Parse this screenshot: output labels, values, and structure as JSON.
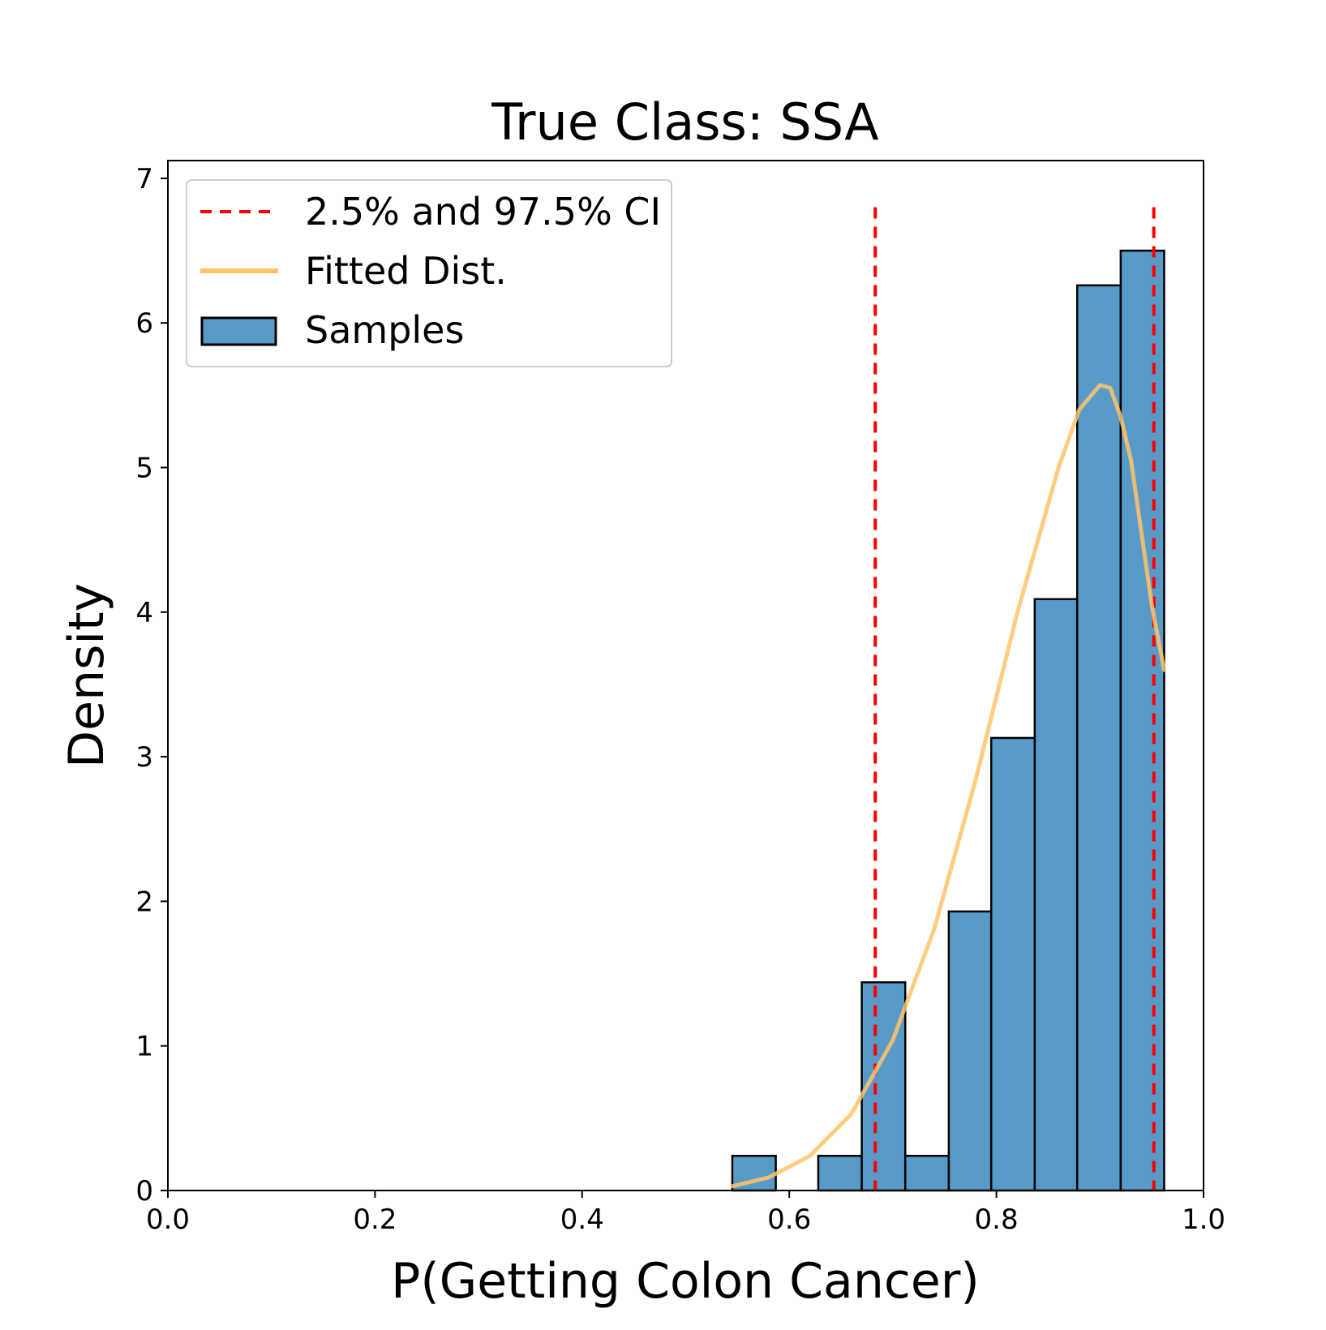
{
  "chart_data": {
    "type": "bar",
    "title": "True Class: SSA",
    "xlabel": "P(Getting Colon Cancer)",
    "ylabel": "Density",
    "xlim": [
      0.0,
      1.0
    ],
    "ylim": [
      0,
      7.2
    ],
    "x_ticks": [
      "0.0",
      "0.2",
      "0.4",
      "0.6",
      "0.8",
      "1.0"
    ],
    "x_tick_values": [
      0.0,
      0.2,
      0.4,
      0.6,
      0.8,
      1.0
    ],
    "y_ticks": [
      "0",
      "1",
      "2",
      "3",
      "4",
      "5",
      "6",
      "7"
    ],
    "y_tick_values": [
      0,
      1,
      2,
      3,
      4,
      5,
      6,
      7
    ],
    "grid": false,
    "legend_position": "top-left",
    "legend": [
      {
        "label": "2.5% and 97.5% CI",
        "kind": "dashed-line",
        "color": "#ff0000"
      },
      {
        "label": "Fitted Dist.",
        "kind": "line",
        "color": "#ffc469"
      },
      {
        "label": "Samples",
        "kind": "patch",
        "color": "#5799c7"
      }
    ],
    "histogram": {
      "name": "Samples",
      "color": "#5799c7",
      "edge_color": "#000000",
      "bin_edges": [
        0.545,
        0.587,
        0.628,
        0.67,
        0.712,
        0.754,
        0.795,
        0.837,
        0.878,
        0.92,
        0.962
      ],
      "densities": [
        0.24,
        0.0,
        0.24,
        1.44,
        0.24,
        1.93,
        3.13,
        4.09,
        6.26,
        6.5
      ]
    },
    "ci_lines": {
      "name": "2.5% and 97.5% CI",
      "color": "#ff0000",
      "x": [
        0.683,
        0.952
      ],
      "y_top": 6.8
    },
    "fitted_curve": {
      "name": "Fitted Dist.",
      "color": "#ffc469",
      "x": [
        0.545,
        0.58,
        0.62,
        0.66,
        0.7,
        0.74,
        0.78,
        0.82,
        0.86,
        0.88,
        0.9,
        0.91,
        0.92,
        0.93,
        0.94,
        0.95,
        0.962
      ],
      "y": [
        0.03,
        0.09,
        0.24,
        0.53,
        1.04,
        1.81,
        2.84,
        3.99,
        5.0,
        5.4,
        5.57,
        5.55,
        5.35,
        5.05,
        4.55,
        4.05,
        3.6
      ]
    }
  }
}
